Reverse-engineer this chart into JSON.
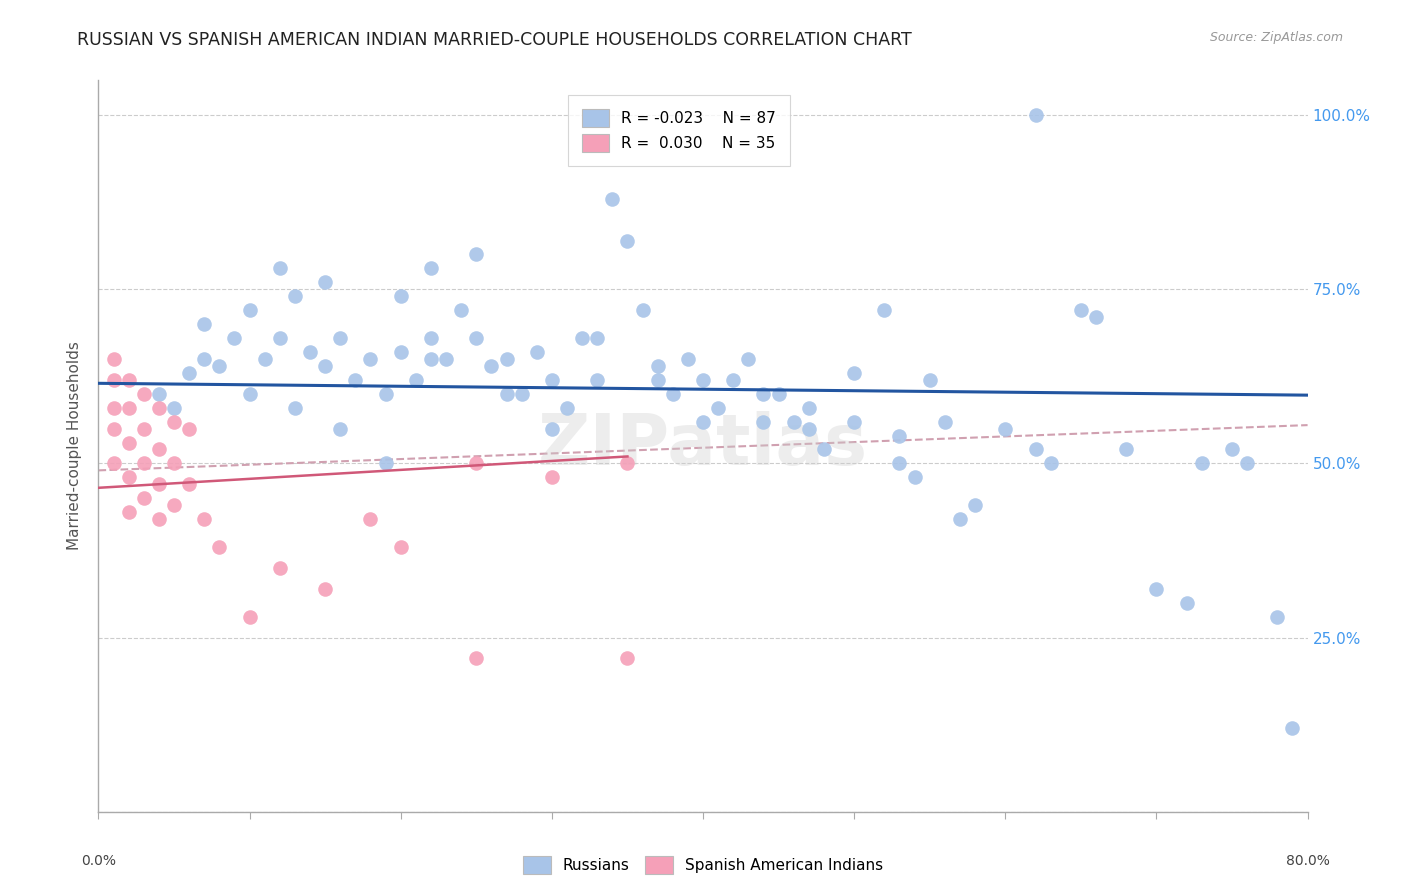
{
  "title": "RUSSIAN VS SPANISH AMERICAN INDIAN MARRIED-COUPLE HOUSEHOLDS CORRELATION CHART",
  "source": "Source: ZipAtlas.com",
  "ylabel": "Married-couple Households",
  "legend_russian_R": "-0.023",
  "legend_russian_N": "87",
  "legend_spanish_R": "0.030",
  "legend_spanish_N": "35",
  "russian_color": "#a8c4e8",
  "spanish_color": "#f5a0b8",
  "russian_line_color": "#2255a0",
  "spanish_line_color": "#d05878",
  "dashed_line_color": "#d0a0b0",
  "watermark": "ZIPatlas",
  "blue_x": [
    0.62,
    0.04,
    0.05,
    0.06,
    0.07,
    0.07,
    0.08,
    0.09,
    0.1,
    0.1,
    0.11,
    0.12,
    0.12,
    0.13,
    0.14,
    0.15,
    0.15,
    0.16,
    0.17,
    0.18,
    0.19,
    0.2,
    0.2,
    0.21,
    0.22,
    0.22,
    0.23,
    0.24,
    0.25,
    0.25,
    0.26,
    0.27,
    0.28,
    0.29,
    0.3,
    0.31,
    0.32,
    0.33,
    0.34,
    0.35,
    0.36,
    0.37,
    0.38,
    0.39,
    0.4,
    0.41,
    0.42,
    0.43,
    0.44,
    0.45,
    0.46,
    0.47,
    0.48,
    0.5,
    0.52,
    0.53,
    0.54,
    0.55,
    0.56,
    0.57,
    0.58,
    0.6,
    0.62,
    0.63,
    0.65,
    0.66,
    0.68,
    0.7,
    0.72,
    0.73,
    0.75,
    0.76,
    0.78,
    0.79,
    0.13,
    0.16,
    0.19,
    0.22,
    0.27,
    0.3,
    0.33,
    0.37,
    0.4,
    0.44,
    0.47,
    0.5,
    0.53
  ],
  "blue_y": [
    1.0,
    0.6,
    0.58,
    0.63,
    0.65,
    0.7,
    0.64,
    0.68,
    0.6,
    0.72,
    0.65,
    0.68,
    0.78,
    0.74,
    0.66,
    0.64,
    0.76,
    0.68,
    0.62,
    0.65,
    0.6,
    0.66,
    0.74,
    0.62,
    0.68,
    0.78,
    0.65,
    0.72,
    0.68,
    0.8,
    0.64,
    0.65,
    0.6,
    0.66,
    0.62,
    0.58,
    0.68,
    0.62,
    0.88,
    0.82,
    0.72,
    0.64,
    0.6,
    0.65,
    0.62,
    0.58,
    0.62,
    0.65,
    0.56,
    0.6,
    0.56,
    0.58,
    0.52,
    0.63,
    0.72,
    0.54,
    0.48,
    0.62,
    0.56,
    0.42,
    0.44,
    0.55,
    0.52,
    0.5,
    0.72,
    0.71,
    0.52,
    0.32,
    0.3,
    0.5,
    0.52,
    0.5,
    0.28,
    0.12,
    0.58,
    0.55,
    0.5,
    0.65,
    0.6,
    0.55,
    0.68,
    0.62,
    0.56,
    0.6,
    0.55,
    0.56,
    0.5
  ],
  "pink_x": [
    0.01,
    0.01,
    0.01,
    0.01,
    0.01,
    0.02,
    0.02,
    0.02,
    0.02,
    0.02,
    0.03,
    0.03,
    0.03,
    0.03,
    0.04,
    0.04,
    0.04,
    0.04,
    0.05,
    0.05,
    0.05,
    0.06,
    0.06,
    0.07,
    0.08,
    0.1,
    0.12,
    0.15,
    0.18,
    0.2,
    0.25,
    0.25,
    0.3,
    0.35,
    0.35
  ],
  "pink_y": [
    0.65,
    0.62,
    0.58,
    0.55,
    0.5,
    0.62,
    0.58,
    0.53,
    0.48,
    0.43,
    0.6,
    0.55,
    0.5,
    0.45,
    0.58,
    0.52,
    0.47,
    0.42,
    0.56,
    0.5,
    0.44,
    0.55,
    0.47,
    0.42,
    0.38,
    0.28,
    0.35,
    0.32,
    0.42,
    0.38,
    0.5,
    0.22,
    0.48,
    0.5,
    0.22
  ],
  "xlim": [
    0.0,
    0.8
  ],
  "ylim": [
    0.0,
    1.05
  ],
  "yticks": [
    0.0,
    0.25,
    0.5,
    0.75,
    1.0
  ],
  "ytick_labels_right": [
    "",
    "25.0%",
    "50.0%",
    "75.0%",
    "100.0%"
  ],
  "xticks": [
    0.0,
    0.1,
    0.2,
    0.3,
    0.4,
    0.5,
    0.6,
    0.7,
    0.8
  ],
  "blue_line_x": [
    0.0,
    0.8
  ],
  "blue_line_y": [
    0.615,
    0.598
  ],
  "pink_line_x": [
    0.0,
    0.35
  ],
  "pink_line_y": [
    0.465,
    0.51
  ],
  "dashed_line_x": [
    0.0,
    0.8
  ],
  "dashed_line_y": [
    0.49,
    0.555
  ]
}
